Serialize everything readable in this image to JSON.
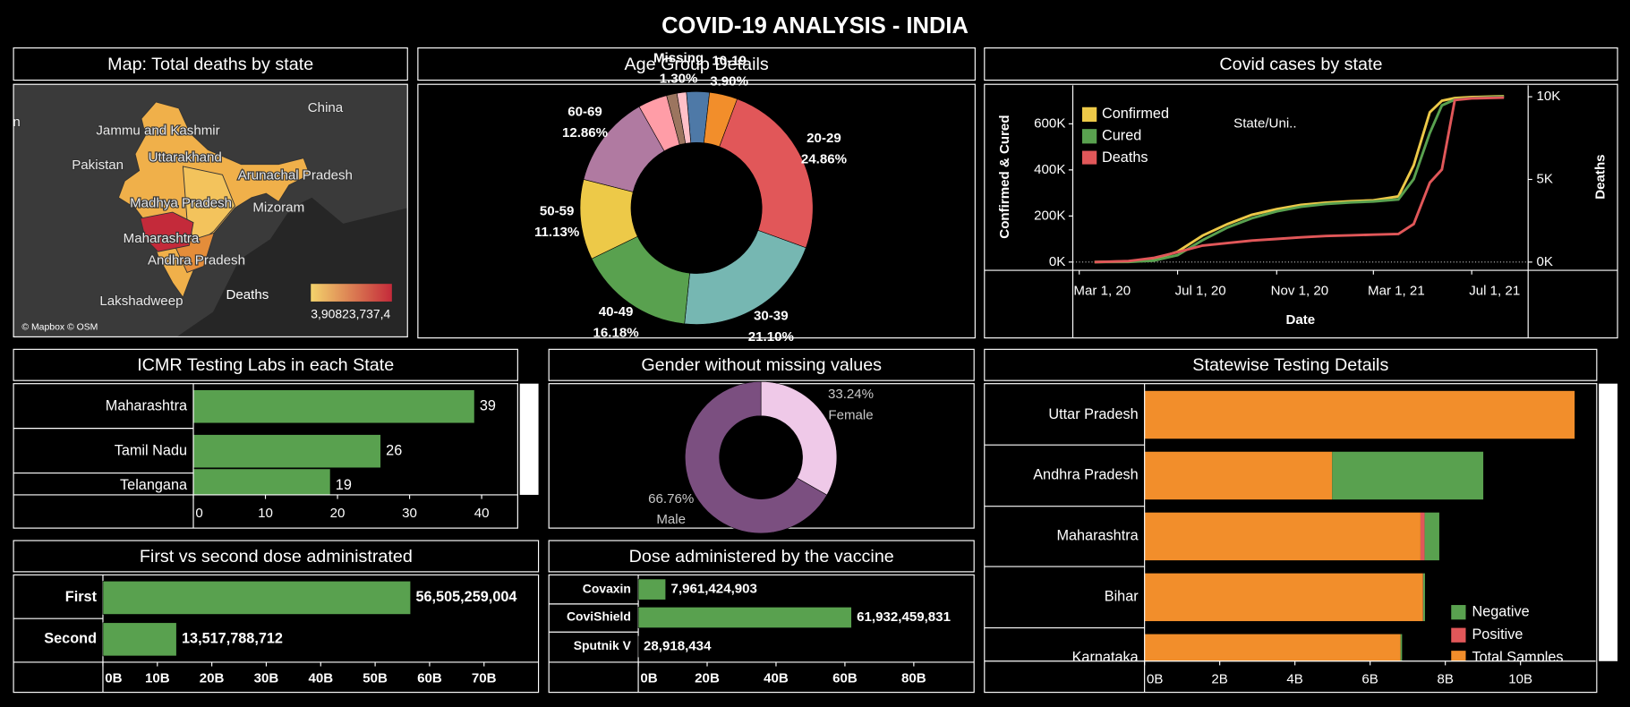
{
  "title": "COVID-19 ANALYSIS - INDIA",
  "chart_data": [
    {
      "type": "map",
      "title": "Map: Total deaths by state",
      "labels": [
        "China",
        "n",
        "Jammu and Kashmir",
        "Pakistan",
        "Uttarakhand",
        "Arunachal Pradesh",
        "Madhya Pradesh",
        "Mizoram",
        "Maharashtra",
        "Andhra Pradesh",
        "Lakshadweep"
      ],
      "legend_title": "Deaths",
      "legend_labels": [
        "3,908",
        "23,737,4"
      ],
      "colors": [
        "#f3d36c",
        "#c42a3a"
      ],
      "attribution": "© Mapbox © OSM"
    },
    {
      "type": "donut",
      "title": "Age Group Details",
      "categories": [
        null,
        "10-19",
        "20-29",
        "30-39",
        "40-49",
        "50-59",
        "60-69",
        null,
        null,
        "Missing"
      ],
      "values": [
        3.18,
        3.9,
        24.86,
        21.1,
        16.18,
        11.13,
        12.86,
        4.05,
        1.45,
        1.3
      ],
      "value_labels": [
        null,
        "3.90%",
        "24.86%",
        "21.10%",
        "16.18%",
        "11.13%",
        "12.86%",
        null,
        null,
        "1.30%"
      ],
      "colors": [
        "#4e79a7",
        "#f28e2b",
        "#e15759",
        "#76b7b2",
        "#59a14f",
        "#edc948",
        "#b07aa1",
        "#ff9da7",
        "#9c755f",
        "#ffc0c8"
      ]
    },
    {
      "type": "line",
      "title": "Covid cases by state",
      "x": [
        "2020-03-20",
        "2020-05-01",
        "2020-06-01",
        "2020-07-01",
        "2020-08-01",
        "2020-09-01",
        "2020-10-01",
        "2020-11-01",
        "2020-12-01",
        "2021-01-01",
        "2021-02-01",
        "2021-03-01",
        "2021-04-01",
        "2021-04-20",
        "2021-05-10",
        "2021-05-25",
        "2021-06-10",
        "2021-07-01",
        "2021-08-10"
      ],
      "series": [
        {
          "name": "Confirmed",
          "color": "#edc948",
          "values": [
            0,
            3000,
            12000,
            45000,
            115000,
            165000,
            205000,
            230000,
            248000,
            258000,
            264000,
            268000,
            285000,
            420000,
            650000,
            700000,
            712000,
            716000,
            720000
          ]
        },
        {
          "name": "Cured",
          "color": "#59a14f",
          "values": [
            0,
            800,
            6000,
            30000,
            95000,
            150000,
            190000,
            220000,
            240000,
            252000,
            259000,
            263000,
            272000,
            360000,
            560000,
            680000,
            705000,
            712000,
            718000
          ]
        },
        {
          "name": "Deaths",
          "color": "#e15759",
          "axis": "y2",
          "values": [
            0,
            60,
            250,
            600,
            1000,
            1150,
            1300,
            1400,
            1500,
            1580,
            1620,
            1660,
            1700,
            2300,
            4800,
            5600,
            9800,
            9900,
            9950
          ]
        }
      ],
      "xlim": [
        "2020-02-22",
        "2021-09-09"
      ],
      "xticks": [
        {
          "value": "2020-03-01",
          "label": "Mar 1, 20"
        },
        {
          "value": "2020-07-01",
          "label": "Jul 1, 20"
        },
        {
          "value": "2020-11-01",
          "label": "Nov 1, 20"
        },
        {
          "value": "2021-03-01",
          "label": "Mar 1, 21"
        },
        {
          "value": "2021-07-01",
          "label": "Jul 1, 21"
        }
      ],
      "ylim": [
        -36000,
        767000
      ],
      "yticks": [
        {
          "value": 0,
          "label": "0K"
        },
        {
          "value": 200000,
          "label": "200K"
        },
        {
          "value": 400000,
          "label": "400K"
        },
        {
          "value": 600000,
          "label": "600K"
        }
      ],
      "y2lim": [
        -500,
        10690
      ],
      "y2ticks": [
        {
          "value": 0,
          "label": "0K"
        },
        {
          "value": 5000,
          "label": "5K"
        },
        {
          "value": 10000,
          "label": "10K"
        }
      ],
      "xlabel": "Date",
      "ylabel": "Confirmed & Cured",
      "y2label": "Deaths",
      "annotation": "State/Uni.."
    },
    {
      "type": "bar",
      "title": "ICMR Testing Labs in each State",
      "categories": [
        "Maharashtra",
        "Tamil Nadu",
        "Telangana"
      ],
      "values": [
        39,
        26,
        19
      ],
      "color": "#59a14f",
      "xlim": [
        0,
        45
      ],
      "xticks": [
        0,
        10,
        20,
        30,
        40
      ]
    },
    {
      "type": "donut",
      "title": "Gender without missing values",
      "categories": [
        "Female",
        "Male"
      ],
      "values": [
        33.24,
        66.76
      ],
      "value_labels": [
        "33.24%",
        "66.76%"
      ],
      "colors": [
        "#efc9e8",
        "#7b4f80"
      ]
    },
    {
      "type": "bar",
      "title": "First vs second dose administrated",
      "categories": [
        "First",
        "Second"
      ],
      "values": [
        56505259004,
        13517788712
      ],
      "value_labels": [
        "56,505,259,004",
        "13,517,788,712"
      ],
      "color": "#59a14f",
      "xlim": [
        0,
        80000000000
      ],
      "xticks": [
        {
          "value": 0,
          "label": "0B"
        },
        {
          "value": 10000000000,
          "label": "10B"
        },
        {
          "value": 20000000000,
          "label": "20B"
        },
        {
          "value": 30000000000,
          "label": "30B"
        },
        {
          "value": 40000000000,
          "label": "40B"
        },
        {
          "value": 50000000000,
          "label": "50B"
        },
        {
          "value": 60000000000,
          "label": "60B"
        },
        {
          "value": 70000000000,
          "label": "70B"
        }
      ]
    },
    {
      "type": "bar",
      "title": "Dose administered by the vaccine",
      "categories": [
        "Covaxin",
        "CoviShield",
        "Sputnik V"
      ],
      "values": [
        7961424903,
        61932459831,
        28918434
      ],
      "value_labels": [
        "7,961,424,903",
        "61,932,459,831",
        "28,918,434"
      ],
      "color": "#59a14f",
      "xlim": [
        0,
        97500000000
      ],
      "xticks": [
        {
          "value": 0,
          "label": "0B"
        },
        {
          "value": 20000000000,
          "label": "20B"
        },
        {
          "value": 40000000000,
          "label": "40B"
        },
        {
          "value": 60000000000,
          "label": "60B"
        },
        {
          "value": 80000000000,
          "label": "80B"
        }
      ]
    },
    {
      "type": "stacked-bar",
      "title": "Statewise Testing Details",
      "categories": [
        "Uttar Pradesh",
        "Andhra Pradesh",
        "Maharashtra",
        "Bihar",
        "Karnataka"
      ],
      "series": [
        {
          "name": "Negative",
          "color": "#59a14f",
          "values": [
            0,
            4020000000,
            390000000,
            50000000,
            40000000
          ]
        },
        {
          "name": "Positive",
          "color": "#e15759",
          "values": [
            0,
            0,
            110000000,
            10000000,
            0
          ]
        },
        {
          "name": "Total Samples",
          "color": "#f28e2b",
          "values": [
            11440000000,
            4990000000,
            7340000000,
            7400000000,
            6810000000
          ]
        }
      ],
      "xlim": [
        0,
        12000000000
      ],
      "xticks": [
        {
          "value": 0,
          "label": "0B"
        },
        {
          "value": 2000000000,
          "label": "2B"
        },
        {
          "value": 4000000000,
          "label": "4B"
        },
        {
          "value": 6000000000,
          "label": "6B"
        },
        {
          "value": 8000000000,
          "label": "8B"
        },
        {
          "value": 10000000000,
          "label": "10B"
        }
      ]
    }
  ]
}
